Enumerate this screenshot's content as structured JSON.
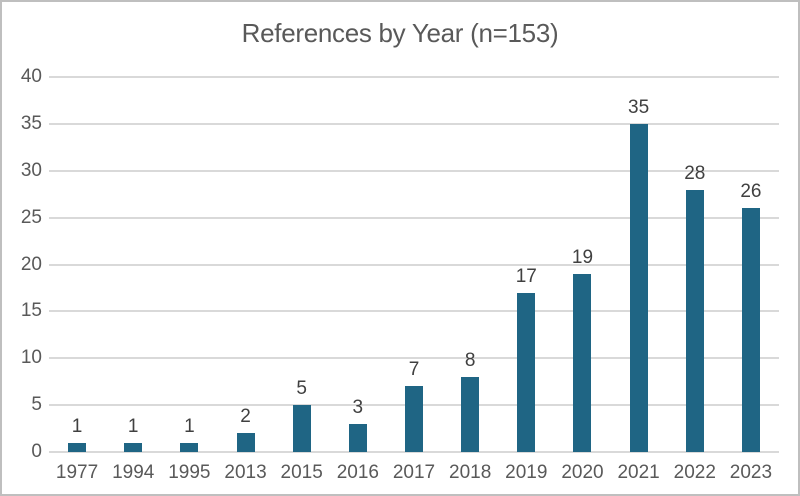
{
  "chart_data": {
    "type": "bar",
    "title": "References by Year (n=153)",
    "categories": [
      "1977",
      "1994",
      "1995",
      "2013",
      "2015",
      "2016",
      "2017",
      "2018",
      "2019",
      "2020",
      "2021",
      "2022",
      "2023"
    ],
    "values": [
      1,
      1,
      1,
      2,
      5,
      3,
      7,
      8,
      17,
      19,
      35,
      28,
      26
    ],
    "total": 153,
    "xlabel": "",
    "ylabel": "",
    "ylim": [
      0,
      40
    ],
    "ytick_step": 5,
    "ytick_labels": [
      "0",
      "5",
      "10",
      "15",
      "20",
      "25",
      "30",
      "35",
      "40"
    ],
    "grid": true,
    "legend": false,
    "data_labels_shown": true,
    "colors": {
      "bar": "#1F6584",
      "gridline": "#D9D9D9",
      "axis_text": "#595959",
      "data_label_text": "#404040",
      "title_text": "#595959",
      "figure_border": "#BFBFBF",
      "background": "#FFFFFF"
    }
  }
}
